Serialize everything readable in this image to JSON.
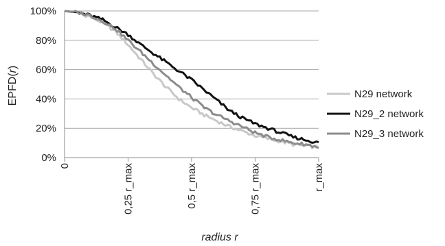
{
  "chart_data": {
    "type": "line",
    "title": "",
    "xlabel_prefix": "radius ",
    "xlabel_var": "r",
    "ylabel_prefix": "EPFD(",
    "ylabel_var": "r",
    "ylabel_suffix": ")",
    "x_ticks": [
      "0",
      "0,25 r_max",
      "0,5 r_max",
      "0,75 r_max",
      "r_max"
    ],
    "x_tick_positions": [
      0,
      0.25,
      0.5,
      0.75,
      1.0
    ],
    "y_ticks": [
      "0%",
      "20%",
      "40%",
      "60%",
      "80%",
      "100%"
    ],
    "y_tick_values": [
      0,
      20,
      40,
      60,
      80,
      100
    ],
    "xlim": [
      0,
      1
    ],
    "ylim": [
      0,
      100
    ],
    "grid": "horizontal",
    "legend_position": "right",
    "series": [
      {
        "name": "N29 network",
        "color": "#c8c8c8",
        "x": [
          0,
          0.05,
          0.1,
          0.15,
          0.2,
          0.25,
          0.3,
          0.35,
          0.4,
          0.45,
          0.5,
          0.55,
          0.6,
          0.65,
          0.7,
          0.75,
          0.8,
          0.85,
          0.9,
          0.95,
          1.0
        ],
        "y": [
          100,
          99,
          96,
          92,
          86,
          77,
          67,
          57,
          48,
          40,
          34,
          29,
          25,
          21,
          18,
          15,
          13,
          11,
          9,
          8,
          7
        ]
      },
      {
        "name": "N29_2 network",
        "color": "#111111",
        "x": [
          0,
          0.05,
          0.1,
          0.15,
          0.2,
          0.25,
          0.3,
          0.35,
          0.4,
          0.45,
          0.5,
          0.55,
          0.6,
          0.65,
          0.7,
          0.75,
          0.8,
          0.85,
          0.9,
          0.95,
          1.0
        ],
        "y": [
          100,
          99,
          97,
          94,
          89,
          84,
          77,
          71,
          65,
          59,
          53,
          46,
          39,
          32,
          27,
          23,
          20,
          17,
          14,
          12,
          10
        ]
      },
      {
        "name": "N29_3 network",
        "color": "#8c8c8c",
        "x": [
          0,
          0.05,
          0.1,
          0.15,
          0.2,
          0.25,
          0.3,
          0.35,
          0.4,
          0.45,
          0.5,
          0.55,
          0.6,
          0.65,
          0.7,
          0.75,
          0.8,
          0.85,
          0.9,
          0.95,
          1.0
        ],
        "y": [
          100,
          99,
          97,
          93,
          88,
          80,
          72,
          64,
          56,
          48,
          41,
          34,
          29,
          25,
          21,
          17,
          14,
          12,
          10,
          9,
          7
        ]
      }
    ]
  }
}
